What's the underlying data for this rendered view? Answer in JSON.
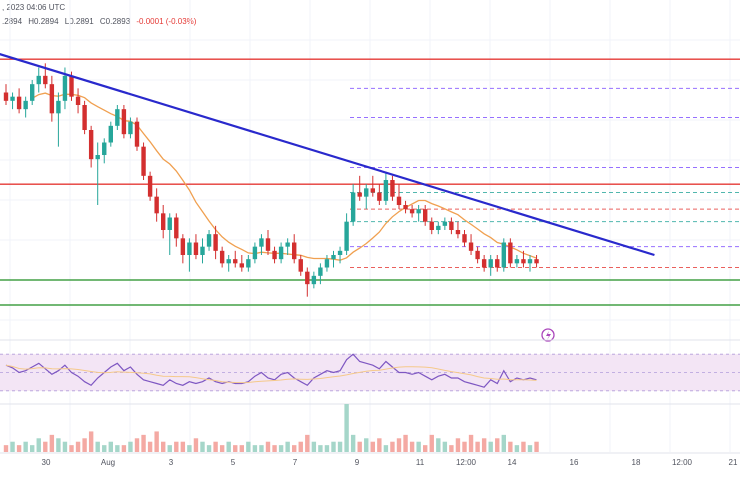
{
  "header": {
    "date_fragment": ", 2023 04:06 UTC",
    "high": "H0.2894",
    "low": "L0.2891",
    "close": "C0.2893",
    "change": "-0.0001 (-0.03%)",
    "open_fragment": ".2894"
  },
  "colors": {
    "up": "#26a69a",
    "down": "#d32f2f",
    "trendline": "#2929cc",
    "resistance": "#e53935",
    "support": "#43a047",
    "ma": "#f0a050",
    "rsi_line": "#7e57c2",
    "rsi_band": "#f3e5f5",
    "fib_purple": "#7c4dff",
    "fib_red": "#e53935",
    "fib_teal": "#26a69a"
  },
  "chart_data": {
    "type": "candlestick",
    "x_ticks": [
      "30",
      "Aug",
      "3",
      "5",
      "7",
      "9",
      "11",
      "12:00",
      "14",
      "16",
      "18",
      "12:00",
      "21"
    ],
    "ohlc": [
      [
        0.305,
        0.307,
        0.302,
        0.303
      ],
      [
        0.303,
        0.305,
        0.301,
        0.304
      ],
      [
        0.304,
        0.306,
        0.3,
        0.301
      ],
      [
        0.301,
        0.304,
        0.299,
        0.303
      ],
      [
        0.303,
        0.308,
        0.302,
        0.307
      ],
      [
        0.307,
        0.311,
        0.305,
        0.309
      ],
      [
        0.309,
        0.312,
        0.306,
        0.307
      ],
      [
        0.307,
        0.309,
        0.298,
        0.3
      ],
      [
        0.3,
        0.305,
        0.292,
        0.303
      ],
      [
        0.303,
        0.311,
        0.301,
        0.309
      ],
      [
        0.309,
        0.31,
        0.303,
        0.304
      ],
      [
        0.304,
        0.306,
        0.3,
        0.302
      ],
      [
        0.302,
        0.303,
        0.295,
        0.296
      ],
      [
        0.296,
        0.297,
        0.287,
        0.289
      ],
      [
        0.289,
        0.293,
        0.278,
        0.29
      ],
      [
        0.29,
        0.294,
        0.288,
        0.293
      ],
      [
        0.293,
        0.298,
        0.292,
        0.297
      ],
      [
        0.297,
        0.302,
        0.296,
        0.301
      ],
      [
        0.301,
        0.302,
        0.294,
        0.295
      ],
      [
        0.295,
        0.299,
        0.294,
        0.298
      ],
      [
        0.298,
        0.299,
        0.291,
        0.292
      ],
      [
        0.292,
        0.293,
        0.284,
        0.285
      ],
      [
        0.285,
        0.286,
        0.279,
        0.28
      ],
      [
        0.28,
        0.282,
        0.274,
        0.276
      ],
      [
        0.276,
        0.278,
        0.27,
        0.272
      ],
      [
        0.272,
        0.276,
        0.266,
        0.275
      ],
      [
        0.275,
        0.276,
        0.268,
        0.27
      ],
      [
        0.27,
        0.271,
        0.264,
        0.266
      ],
      [
        0.266,
        0.27,
        0.262,
        0.269
      ],
      [
        0.269,
        0.271,
        0.265,
        0.266
      ],
      [
        0.266,
        0.27,
        0.264,
        0.268
      ],
      [
        0.268,
        0.272,
        0.267,
        0.271
      ],
      [
        0.271,
        0.273,
        0.265,
        0.267
      ],
      [
        0.267,
        0.268,
        0.263,
        0.264
      ],
      [
        0.264,
        0.266,
        0.262,
        0.265
      ],
      [
        0.265,
        0.267,
        0.263,
        0.264
      ],
      [
        0.264,
        0.266,
        0.262,
        0.263
      ],
      [
        0.263,
        0.266,
        0.262,
        0.265
      ],
      [
        0.265,
        0.269,
        0.264,
        0.268
      ],
      [
        0.268,
        0.271,
        0.266,
        0.27
      ],
      [
        0.27,
        0.272,
        0.266,
        0.267
      ],
      [
        0.267,
        0.268,
        0.264,
        0.265
      ],
      [
        0.265,
        0.269,
        0.264,
        0.268
      ],
      [
        0.268,
        0.27,
        0.266,
        0.269
      ],
      [
        0.269,
        0.271,
        0.264,
        0.265
      ],
      [
        0.265,
        0.266,
        0.261,
        0.262
      ],
      [
        0.262,
        0.263,
        0.256,
        0.259
      ],
      [
        0.259,
        0.262,
        0.258,
        0.261
      ],
      [
        0.261,
        0.264,
        0.259,
        0.263
      ],
      [
        0.263,
        0.266,
        0.262,
        0.265
      ],
      [
        0.265,
        0.267,
        0.263,
        0.266
      ],
      [
        0.266,
        0.268,
        0.264,
        0.267
      ],
      [
        0.267,
        0.276,
        0.266,
        0.274
      ],
      [
        0.274,
        0.283,
        0.273,
        0.281
      ],
      [
        0.281,
        0.285,
        0.279,
        0.28
      ],
      [
        0.28,
        0.283,
        0.277,
        0.282
      ],
      [
        0.282,
        0.285,
        0.28,
        0.281
      ],
      [
        0.281,
        0.283,
        0.278,
        0.279
      ],
      [
        0.279,
        0.286,
        0.278,
        0.284
      ],
      [
        0.284,
        0.285,
        0.279,
        0.28
      ],
      [
        0.28,
        0.283,
        0.277,
        0.278
      ],
      [
        0.278,
        0.279,
        0.276,
        0.277
      ],
      [
        0.277,
        0.278,
        0.275,
        0.276
      ],
      [
        0.276,
        0.278,
        0.274,
        0.277
      ],
      [
        0.277,
        0.278,
        0.273,
        0.274
      ],
      [
        0.274,
        0.275,
        0.271,
        0.272
      ],
      [
        0.272,
        0.274,
        0.271,
        0.273
      ],
      [
        0.273,
        0.275,
        0.272,
        0.274
      ],
      [
        0.274,
        0.275,
        0.271,
        0.272
      ],
      [
        0.272,
        0.274,
        0.27,
        0.271
      ],
      [
        0.271,
        0.272,
        0.268,
        0.269
      ],
      [
        0.269,
        0.271,
        0.266,
        0.267
      ],
      [
        0.267,
        0.268,
        0.264,
        0.265
      ],
      [
        0.265,
        0.266,
        0.262,
        0.263
      ],
      [
        0.263,
        0.266,
        0.261,
        0.265
      ],
      [
        0.265,
        0.266,
        0.262,
        0.263
      ],
      [
        0.263,
        0.27,
        0.262,
        0.269
      ],
      [
        0.269,
        0.27,
        0.263,
        0.264
      ],
      [
        0.264,
        0.266,
        0.263,
        0.265
      ],
      [
        0.265,
        0.267,
        0.263,
        0.264
      ],
      [
        0.264,
        0.266,
        0.262,
        0.265
      ],
      [
        0.265,
        0.266,
        0.263,
        0.264
      ]
    ],
    "moving_average_label": "",
    "horizontal_levels": [
      {
        "kind": "resistance",
        "value": 0.313
      },
      {
        "kind": "resistance",
        "value": 0.283
      },
      {
        "kind": "support",
        "value": 0.26
      },
      {
        "kind": "support",
        "value": 0.254
      }
    ],
    "fib_levels": [
      0.306,
      0.299,
      0.287,
      0.281,
      0.277,
      0.274,
      0.268,
      0.263
    ],
    "trendline": {
      "from": [
        2,
        0.315
      ],
      "to": [
        99,
        0.266
      ]
    },
    "rsi": [
      58,
      55,
      50,
      52,
      56,
      60,
      54,
      48,
      52,
      58,
      50,
      46,
      40,
      36,
      44,
      50,
      56,
      60,
      52,
      56,
      48,
      42,
      40,
      38,
      36,
      42,
      38,
      36,
      40,
      38,
      40,
      44,
      40,
      38,
      40,
      38,
      38,
      40,
      46,
      50,
      44,
      42,
      48,
      50,
      44,
      40,
      36,
      44,
      48,
      52,
      50,
      52,
      64,
      70,
      62,
      60,
      58,
      54,
      62,
      56,
      50,
      50,
      48,
      50,
      46,
      42,
      46,
      48,
      44,
      44,
      40,
      38,
      36,
      34,
      42,
      38,
      52,
      40,
      44,
      42,
      44,
      42
    ],
    "rsi_levels": [
      70,
      50,
      30
    ],
    "volume": [
      2,
      3,
      2,
      3,
      2,
      4,
      3,
      5,
      4,
      3,
      2,
      3,
      4,
      6,
      3,
      2,
      3,
      2,
      2,
      3,
      4,
      5,
      3,
      6,
      3,
      2,
      3,
      3,
      2,
      4,
      3,
      2,
      3,
      2,
      3,
      2,
      2,
      3,
      2,
      2,
      3,
      2,
      2,
      3,
      2,
      3,
      5,
      3,
      2,
      2,
      3,
      3,
      14,
      5,
      3,
      4,
      3,
      4,
      2,
      3,
      4,
      5,
      3,
      3,
      2,
      5,
      4,
      3,
      2,
      4,
      3,
      5,
      3,
      4,
      3,
      4,
      5,
      3,
      2,
      3,
      2,
      3
    ]
  }
}
